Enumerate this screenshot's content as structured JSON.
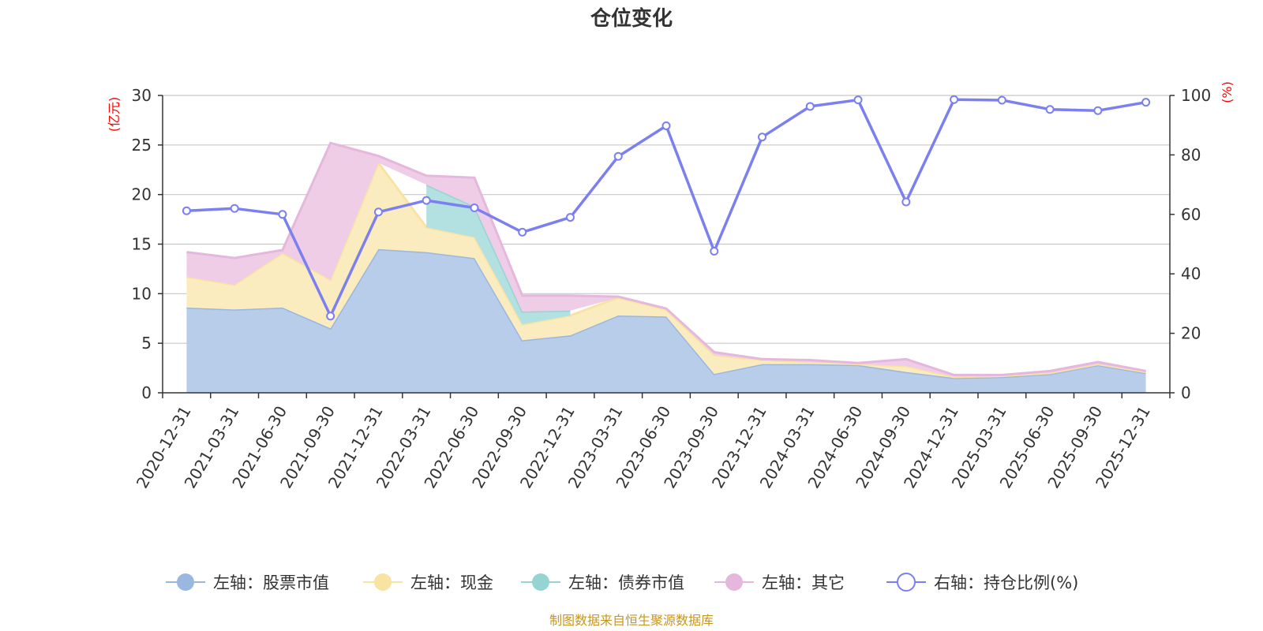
{
  "chart_data": {
    "type": "area",
    "title": "仓位变化",
    "source": "制图数据来自恒生聚源数据库",
    "left_axis": {
      "unit": "(亿元)",
      "range": [
        0,
        30
      ],
      "ticks": [
        "0",
        "5",
        "10",
        "15",
        "20",
        "25",
        "30"
      ]
    },
    "right_axis": {
      "unit": "(%)",
      "range": [
        0,
        100
      ],
      "ticks": [
        "0",
        "20",
        "40",
        "60",
        "80",
        "100"
      ]
    },
    "categories": [
      "2020-12-31",
      "2021-03-31",
      "2021-06-30",
      "2021-09-30",
      "2021-12-31",
      "2022-03-31",
      "2022-06-30",
      "2022-09-30",
      "2022-12-31",
      "2023-03-31",
      "2023-06-30",
      "2023-09-30",
      "2023-12-31",
      "2024-03-31",
      "2024-06-30",
      "2024-09-30",
      "2024-12-31",
      "2025-03-31",
      "2025-06-30",
      "2025-09-30",
      "2025-12-31"
    ],
    "series": [
      {
        "name": "左轴：股票市值",
        "axis": "left",
        "kind": "stacked-area",
        "color": "#9ab7e0",
        "fill": "#b8cdea",
        "values": [
          8.6,
          8.4,
          8.6,
          6.5,
          14.5,
          14.2,
          13.6,
          5.3,
          5.8,
          7.8,
          7.7,
          1.9,
          2.9,
          2.9,
          2.8,
          2.1,
          1.5,
          1.6,
          1.9,
          2.8,
          2.0
        ]
      },
      {
        "name": "左轴：现金",
        "axis": "left",
        "kind": "stacked-area",
        "color": "#f8e3a3",
        "fill": "#faecbe",
        "values": [
          3.1,
          2.5,
          5.5,
          4.9,
          8.7,
          2.5,
          2.1,
          1.6,
          2.0,
          1.8,
          0.7,
          1.9,
          0.4,
          0.2,
          0.1,
          0.6,
          0.1,
          0.1,
          0.1,
          0.1,
          0.1
        ]
      },
      {
        "name": "左轴：债券市值",
        "axis": "left",
        "kind": "stacked-area",
        "color": "#96d4d4",
        "fill": "#b3e0e0",
        "values": [
          null,
          null,
          null,
          null,
          null,
          4.3,
          3.1,
          1.3,
          0.5,
          null,
          null,
          null,
          null,
          null,
          null,
          null,
          null,
          null,
          null,
          null,
          null
        ]
      },
      {
        "name": "左轴：其它",
        "axis": "left",
        "kind": "stacked-area",
        "color": "#e6b7dc",
        "fill": "#efcde6",
        "values": [
          2.5,
          2.7,
          0.3,
          13.8,
          0.7,
          0.9,
          2.9,
          1.6,
          1.5,
          0.1,
          0.1,
          0.3,
          0.1,
          0.2,
          0.1,
          0.7,
          0.2,
          0.1,
          0.2,
          0.2,
          0.1
        ]
      },
      {
        "name": "右轴：持仓比例(%)",
        "axis": "right",
        "kind": "line",
        "color": "#7b7ff0",
        "values": [
          61.2,
          62.0,
          60.0,
          25.8,
          60.8,
          64.7,
          62.2,
          54.0,
          59.0,
          79.5,
          89.8,
          47.6,
          86.0,
          96.3,
          98.5,
          64.2,
          98.6,
          98.4,
          95.3,
          94.9,
          97.7
        ]
      }
    ]
  }
}
